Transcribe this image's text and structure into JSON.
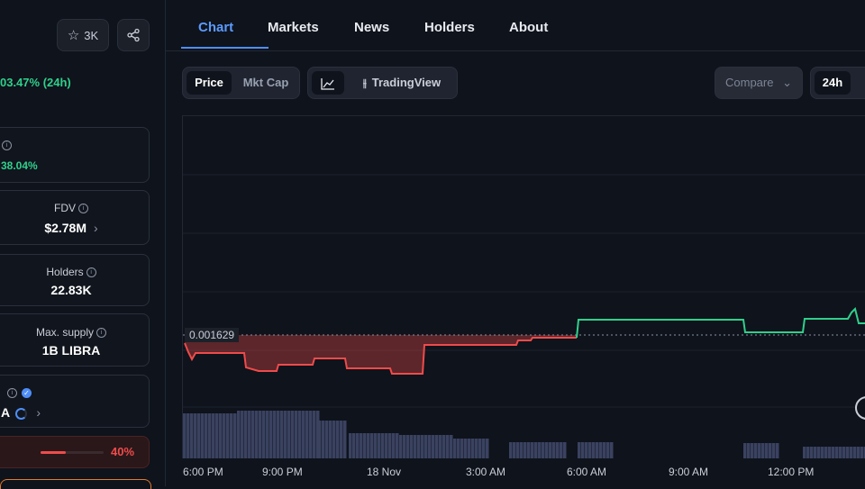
{
  "left": {
    "fav_count": "3K",
    "change_24h": "03.47% (24h)",
    "card1_value": "38.04%",
    "fdv": {
      "label": "FDV",
      "value": "$2.78M"
    },
    "holders": {
      "label": "Holders",
      "value": "22.83K"
    },
    "max_supply": {
      "label": "Max. supply",
      "value": "1B LIBRA"
    },
    "token_label": "A",
    "progress": {
      "percent_label": "40%",
      "fraction": 0.4
    }
  },
  "tabs": [
    "Chart",
    "Markets",
    "News",
    "Holders",
    "About"
  ],
  "toolbar": {
    "price_label": "Price",
    "mktcap_label": "Mkt Cap",
    "tradingview_label": "TradingView",
    "compare_label": "Compare",
    "range_label": "24h"
  },
  "chart_data": {
    "type": "line",
    "ref_price_label": "0.001629",
    "x_tick_labels": [
      "6:00 PM",
      "9:00 PM",
      "18 Nov",
      "3:00 AM",
      "6:00 AM",
      "9:00 AM",
      "12:00 PM"
    ],
    "colors": {
      "up": "#2fd08c",
      "down": "#ef4b4b",
      "volume": "#3a4260"
    }
  }
}
